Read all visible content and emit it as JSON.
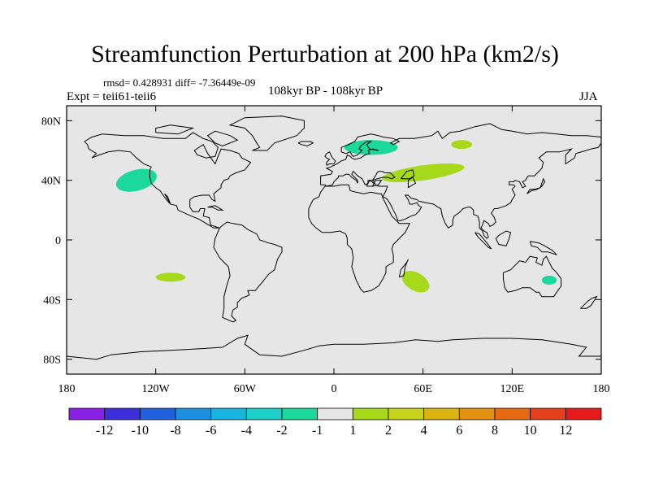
{
  "title": "Streamfunction Perturbation at 200 hPa (km2/s)",
  "stats_text": "rmsd= 0.428931  diff= -7.36449e-09",
  "left_string": "Expt = teii61-teii6",
  "center_string": "108kyr BP - 108kyr BP",
  "right_string": "JJA",
  "map": {
    "projection": "cylindrical-equidistant",
    "lon_range": [
      -180,
      180
    ],
    "lat_range": [
      -90,
      90
    ],
    "ocean_color": "#e6e6e6",
    "coastline_color": "#000000",
    "x_ticks": [
      {
        "lon": -180,
        "label": "180"
      },
      {
        "lon": -120,
        "label": "120W"
      },
      {
        "lon": -60,
        "label": "60W"
      },
      {
        "lon": 0,
        "label": "0"
      },
      {
        "lon": 60,
        "label": "60E"
      },
      {
        "lon": 120,
        "label": "120E"
      },
      {
        "lon": 180,
        "label": "180"
      }
    ],
    "y_ticks": [
      {
        "lat": 80,
        "label": "80N"
      },
      {
        "lat": 40,
        "label": "40N"
      },
      {
        "lat": 0,
        "label": "0"
      },
      {
        "lat": -40,
        "label": "40S"
      },
      {
        "lat": -80,
        "label": "80S"
      }
    ]
  },
  "anomalies": [
    {
      "lon": -133,
      "lat": 40,
      "rlon": 14,
      "rlat": 7,
      "rot": -15,
      "level": -2
    },
    {
      "lon": 25,
      "lat": 62,
      "rlon": 18,
      "rlat": 5,
      "rot": 0,
      "level": -2
    },
    {
      "lon": 60,
      "lat": 45,
      "rlon": 28,
      "rlat": 5,
      "rot": -8,
      "level": 2
    },
    {
      "lon": 86,
      "lat": 64,
      "rlon": 7,
      "rlat": 3,
      "rot": 0,
      "level": 2
    },
    {
      "lon": -110,
      "lat": -25,
      "rlon": 10,
      "rlat": 3,
      "rot": 0,
      "level": 2
    },
    {
      "lon": 55,
      "lat": -28,
      "rlon": 10,
      "rlat": 6,
      "rot": 30,
      "level": 2
    },
    {
      "lon": 145,
      "lat": -27,
      "rlon": 5,
      "rlat": 3,
      "rot": 0,
      "level": -2
    }
  ],
  "colorbar": {
    "colors": [
      "#8a1fe6",
      "#3a2fd8",
      "#1f5fe0",
      "#1c8fe0",
      "#18b4e0",
      "#1cd0c8",
      "#1ad99a",
      "#e6e6e6",
      "#a6d91a",
      "#c7d21a",
      "#dcb412",
      "#e49010",
      "#e66a10",
      "#e4401a",
      "#e61a1a"
    ],
    "labels": [
      "-12",
      "-10",
      "-8",
      "-6",
      "-4",
      "-2",
      "-1",
      "1",
      "2",
      "4",
      "6",
      "8",
      "10",
      "12"
    ]
  }
}
